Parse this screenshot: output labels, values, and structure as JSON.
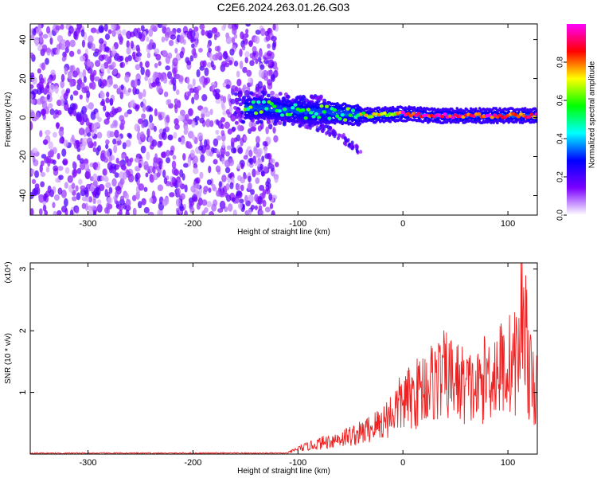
{
  "title": "C2E6.2024.263.01.26.G03",
  "chart_data": [
    {
      "type": "heatmap",
      "title": "C2E6.2024.263.01.26.G03",
      "xlabel": "Height of straight line (km)",
      "ylabel": "Frequency (Hz)",
      "xlim": [
        -355,
        128
      ],
      "ylim": [
        -50,
        48
      ],
      "xticks": [
        -300,
        -200,
        -100,
        0,
        100
      ],
      "yticks": [
        -40,
        -20,
        0,
        20,
        40
      ],
      "colorbar": {
        "label": "Normalized spectral amplitude",
        "range": [
          0.0,
          1.0
        ],
        "ticks": [
          "0.0",
          "0.2",
          "0.4",
          "0.6",
          "0.8"
        ],
        "colormap": [
          "#ffffff",
          "#7b00ff",
          "#0000ff",
          "#00ffff",
          "#00ff00",
          "#ffff00",
          "#ff0000",
          "#ff00ff"
        ]
      },
      "features": [
        {
          "name": "noise_region",
          "x_range": [
            -355,
            -130
          ],
          "freq_range": [
            -50,
            48
          ],
          "amplitude": 0.15
        },
        {
          "name": "signal_ridge",
          "points": [
            [
              -160,
              5
            ],
            [
              -130,
              5
            ],
            [
              -110,
              4
            ],
            [
              -90,
              3
            ],
            [
              -70,
              3
            ],
            [
              -50,
              2
            ],
            [
              -30,
              1
            ],
            [
              0,
              2
            ],
            [
              30,
              1
            ],
            [
              60,
              1
            ],
            [
              100,
              1
            ],
            [
              128,
              1
            ]
          ],
          "amplitude": 0.85
        },
        {
          "name": "secondary_branch",
          "points": [
            [
              -100,
              -2
            ],
            [
              -80,
              -5
            ],
            [
              -60,
              -9
            ],
            [
              -50,
              -14
            ],
            [
              -40,
              -18
            ]
          ],
          "amplitude": 0.3
        }
      ]
    },
    {
      "type": "line",
      "xlabel": "Height of straight line (km)",
      "ylabel": "SNR (10 * v/v)",
      "yunit": "(x10⁴)",
      "xlim": [
        -355,
        128
      ],
      "ylim": [
        0,
        3.1
      ],
      "xticks": [
        -300,
        -200,
        -100,
        0,
        100
      ],
      "yticks": [
        1,
        2,
        3
      ],
      "color": "#ee2222",
      "x": [
        -355,
        -250,
        -150,
        -110,
        -100,
        -90,
        -80,
        -70,
        -60,
        -50,
        -40,
        -30,
        -20,
        -10,
        0,
        10,
        20,
        30,
        40,
        50,
        60,
        70,
        80,
        90,
        100,
        110,
        115,
        120,
        128
      ],
      "values": [
        0.01,
        0.01,
        0.01,
        0.02,
        0.1,
        0.15,
        0.2,
        0.25,
        0.3,
        0.35,
        0.4,
        0.5,
        0.6,
        0.8,
        1.0,
        1.1,
        1.3,
        1.4,
        1.5,
        1.4,
        1.3,
        1.2,
        1.5,
        1.6,
        1.7,
        1.8,
        3.1,
        1.5,
        1.2
      ]
    }
  ]
}
